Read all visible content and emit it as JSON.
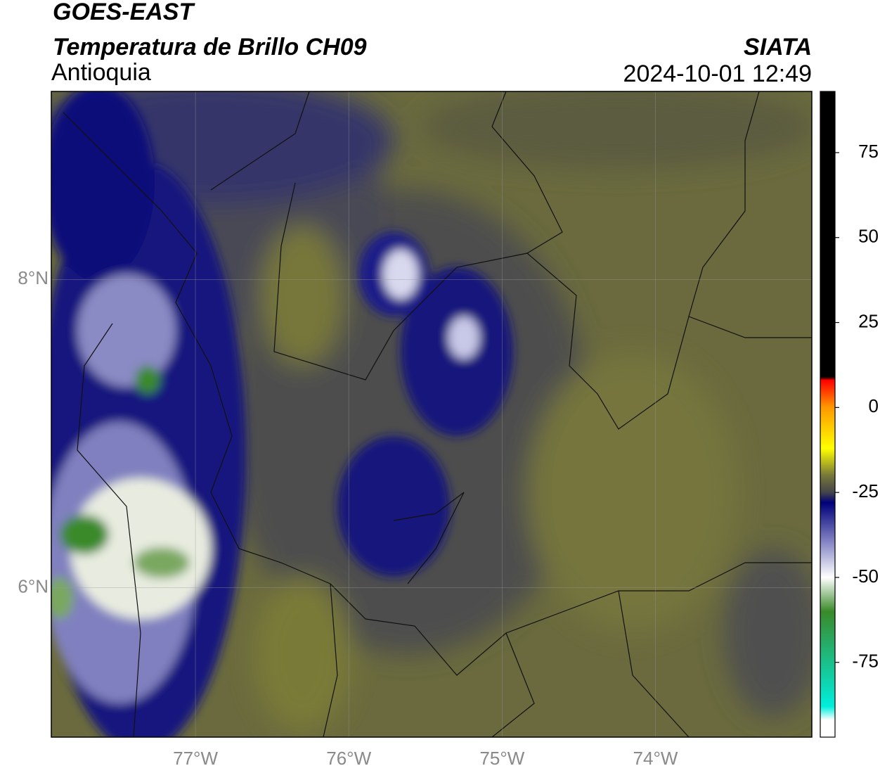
{
  "header": {
    "title": "GOES-EAST",
    "subtitle": "Temperatura de Brillo CH09",
    "region": "Antioquia",
    "source": "SIATA",
    "datetime": "2024-10-01 12:49"
  },
  "map": {
    "xlim": [
      -77.94,
      -72.98
    ],
    "ylim": [
      5.03,
      9.22
    ],
    "xticks": [
      {
        "value": -77,
        "label": "77°W"
      },
      {
        "value": -76,
        "label": "76°W"
      },
      {
        "value": -75,
        "label": "75°W"
      },
      {
        "value": -74,
        "label": "74°W"
      }
    ],
    "yticks": [
      {
        "value": 8,
        "label": "8°N"
      },
      {
        "value": 6,
        "label": "6°N"
      }
    ],
    "grid": true
  },
  "colorbar": {
    "lim": [
      -97,
      93
    ],
    "ticks": [
      75,
      50,
      25,
      0,
      -25,
      -50,
      -75
    ],
    "stops": [
      {
        "value": 93,
        "color": "#000000"
      },
      {
        "value": 9,
        "color": "#000000"
      },
      {
        "value": 8,
        "color": "#ff0000"
      },
      {
        "value": 0,
        "color": "#ff9900"
      },
      {
        "value": -12,
        "color": "#ffff00"
      },
      {
        "value": -20,
        "color": "#77773a"
      },
      {
        "value": -25,
        "color": "#44444a"
      },
      {
        "value": -28,
        "color": "#00007a"
      },
      {
        "value": -40,
        "color": "#8a8ac8"
      },
      {
        "value": -50,
        "color": "#ffffff"
      },
      {
        "value": -60,
        "color": "#3a8a2a"
      },
      {
        "value": -88,
        "color": "#00eedd"
      },
      {
        "value": -92,
        "color": "#ffffff"
      },
      {
        "value": -97,
        "color": "#ffffff"
      }
    ]
  }
}
